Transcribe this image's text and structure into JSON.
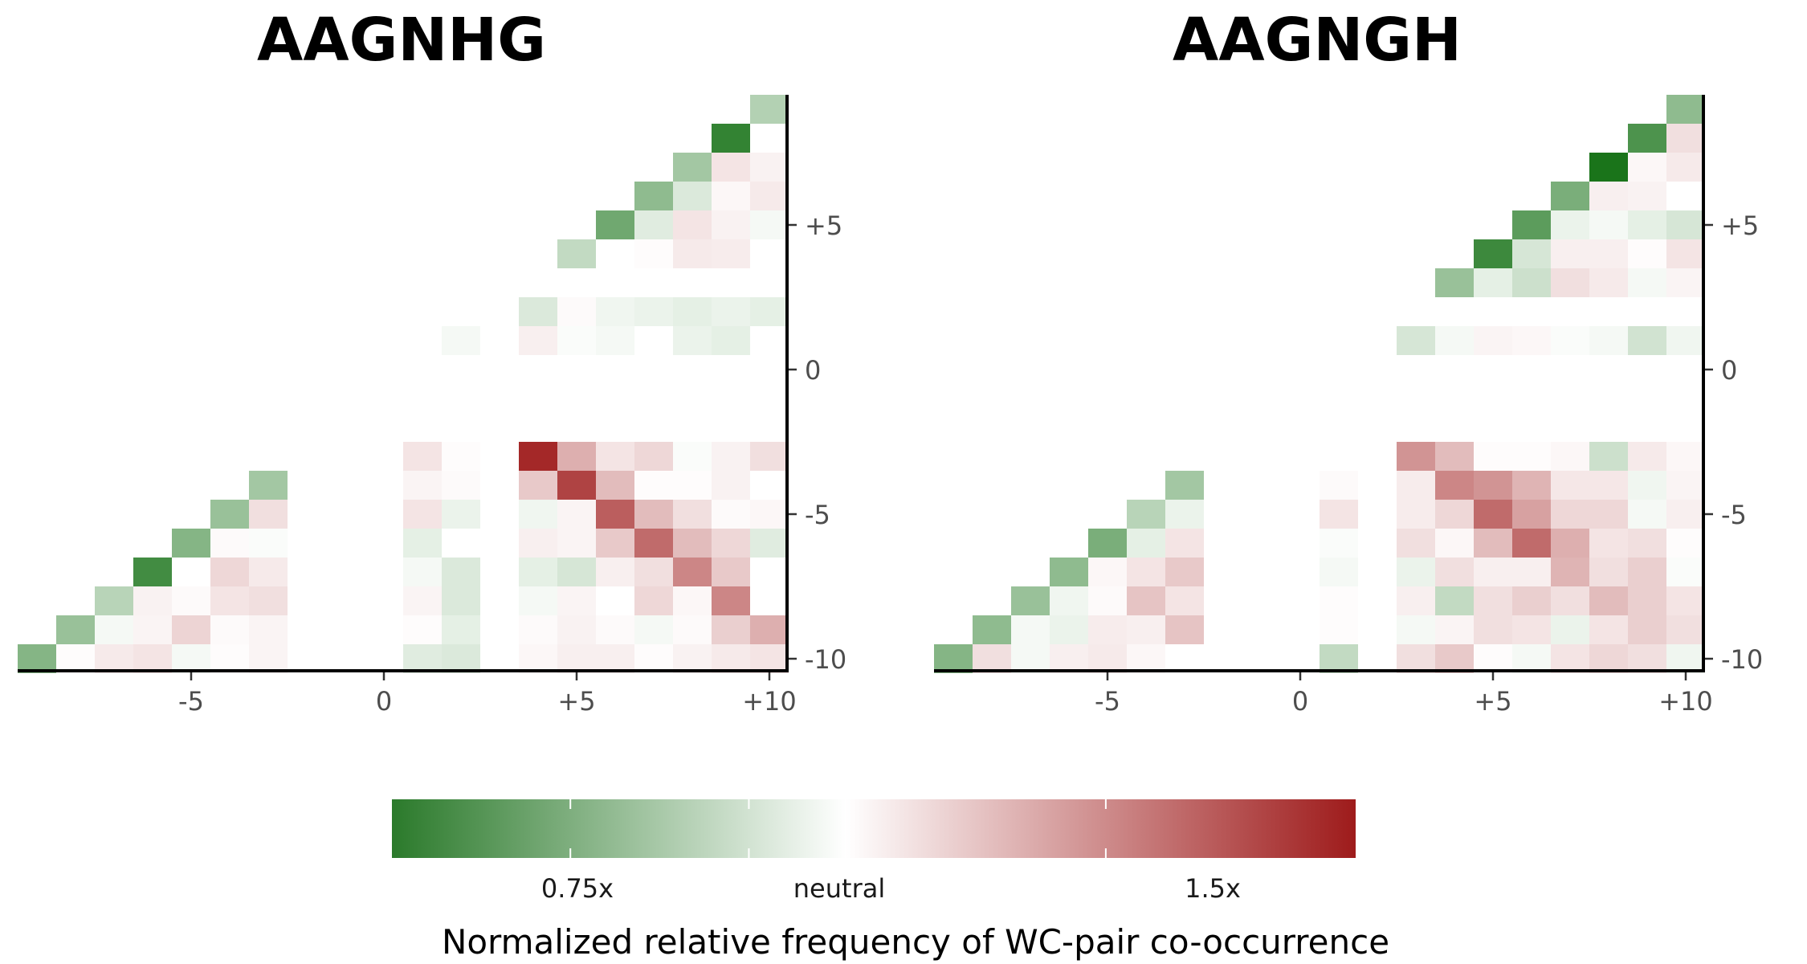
{
  "chart_data": [
    {
      "type": "heatmap",
      "title": "AAGNHG",
      "x_ticks": [
        "-5",
        "0",
        "+5",
        "+10"
      ],
      "y_ticks": [
        "+5",
        "0",
        "-5",
        "-10"
      ],
      "x_range": [
        -10,
        10
      ],
      "y_range": [
        -10,
        9
      ],
      "cells": [
        [
          10,
          9,
          0.85
        ],
        [
          9,
          8,
          0.6
        ],
        [
          10,
          8,
          1.0
        ],
        [
          8,
          7,
          0.82
        ],
        [
          9,
          7,
          1.1
        ],
        [
          10,
          7,
          1.05
        ],
        [
          7,
          6,
          0.78
        ],
        [
          8,
          6,
          0.93
        ],
        [
          9,
          6,
          1.03
        ],
        [
          10,
          6,
          1.08
        ],
        [
          6,
          5,
          0.72
        ],
        [
          7,
          5,
          0.94
        ],
        [
          8,
          5,
          1.1
        ],
        [
          9,
          5,
          1.05
        ],
        [
          10,
          5,
          0.98
        ],
        [
          5,
          4,
          0.88
        ],
        [
          6,
          4,
          1.0
        ],
        [
          7,
          4,
          1.01
        ],
        [
          8,
          4,
          1.08
        ],
        [
          9,
          4,
          1.07
        ],
        [
          4,
          2,
          0.93
        ],
        [
          5,
          2,
          1.02
        ],
        [
          6,
          2,
          0.97
        ],
        [
          7,
          2,
          0.96
        ],
        [
          8,
          2,
          0.95
        ],
        [
          9,
          2,
          0.96
        ],
        [
          10,
          2,
          0.95
        ],
        [
          2,
          1,
          0.98
        ],
        [
          4,
          1,
          1.06
        ],
        [
          5,
          1,
          0.99
        ],
        [
          6,
          1,
          0.98
        ],
        [
          7,
          1,
          1.0
        ],
        [
          8,
          1,
          0.96
        ],
        [
          9,
          1,
          0.95
        ],
        [
          1,
          -3,
          1.1
        ],
        [
          2,
          -3,
          1.01
        ],
        [
          4,
          -3,
          1.8
        ],
        [
          5,
          -3,
          1.3
        ],
        [
          6,
          -3,
          1.1
        ],
        [
          7,
          -3,
          1.15
        ],
        [
          8,
          -3,
          0.99
        ],
        [
          9,
          -3,
          1.05
        ],
        [
          10,
          -3,
          1.12
        ],
        [
          -3,
          -4,
          0.82
        ],
        [
          1,
          -4,
          1.04
        ],
        [
          2,
          -4,
          1.02
        ],
        [
          4,
          -4,
          1.2
        ],
        [
          5,
          -4,
          1.7
        ],
        [
          6,
          -4,
          1.25
        ],
        [
          7,
          -4,
          1.01
        ],
        [
          8,
          -4,
          1.01
        ],
        [
          9,
          -4,
          1.05
        ],
        [
          10,
          -4,
          1.0
        ],
        [
          -4,
          -5,
          0.8
        ],
        [
          -3,
          -5,
          1.12
        ],
        [
          1,
          -5,
          1.1
        ],
        [
          2,
          -5,
          0.96
        ],
        [
          4,
          -5,
          0.97
        ],
        [
          5,
          -5,
          1.04
        ],
        [
          6,
          -5,
          1.6
        ],
        [
          7,
          -5,
          1.25
        ],
        [
          8,
          -5,
          1.12
        ],
        [
          9,
          -5,
          1.02
        ],
        [
          10,
          -5,
          1.03
        ],
        [
          -5,
          -6,
          0.76
        ],
        [
          -4,
          -6,
          1.02
        ],
        [
          -3,
          -6,
          0.99
        ],
        [
          1,
          -6,
          0.95
        ],
        [
          2,
          -6,
          1.0
        ],
        [
          4,
          -6,
          1.06
        ],
        [
          5,
          -6,
          1.04
        ],
        [
          6,
          -6,
          1.2
        ],
        [
          7,
          -6,
          1.55
        ],
        [
          8,
          -6,
          1.25
        ],
        [
          9,
          -6,
          1.15
        ],
        [
          10,
          -6,
          0.94
        ],
        [
          -6,
          -7,
          0.63
        ],
        [
          -5,
          -7,
          1.0
        ],
        [
          -4,
          -7,
          1.15
        ],
        [
          -3,
          -7,
          1.08
        ],
        [
          1,
          -7,
          0.98
        ],
        [
          2,
          -7,
          0.93
        ],
        [
          4,
          -7,
          0.95
        ],
        [
          5,
          -7,
          0.92
        ],
        [
          6,
          -7,
          1.06
        ],
        [
          7,
          -7,
          1.12
        ],
        [
          8,
          -7,
          1.45
        ],
        [
          9,
          -7,
          1.2
        ],
        [
          10,
          -7,
          1.0
        ],
        [
          -7,
          -8,
          0.86
        ],
        [
          -6,
          -8,
          1.05
        ],
        [
          -5,
          -8,
          1.02
        ],
        [
          -4,
          -8,
          1.1
        ],
        [
          -3,
          -8,
          1.12
        ],
        [
          1,
          -8,
          1.04
        ],
        [
          2,
          -8,
          0.93
        ],
        [
          4,
          -8,
          0.98
        ],
        [
          5,
          -8,
          1.04
        ],
        [
          6,
          -8,
          1.0
        ],
        [
          7,
          -8,
          1.15
        ],
        [
          8,
          -8,
          1.03
        ],
        [
          9,
          -8,
          1.45
        ],
        [
          10,
          -8,
          1.0
        ],
        [
          -8,
          -9,
          0.8
        ],
        [
          -7,
          -9,
          0.98
        ],
        [
          -6,
          -9,
          1.04
        ],
        [
          -5,
          -9,
          1.16
        ],
        [
          -4,
          -9,
          1.02
        ],
        [
          -3,
          -9,
          1.04
        ],
        [
          1,
          -9,
          1.01
        ],
        [
          2,
          -9,
          0.95
        ],
        [
          4,
          -9,
          1.02
        ],
        [
          5,
          -9,
          1.05
        ],
        [
          6,
          -9,
          1.02
        ],
        [
          7,
          -9,
          0.98
        ],
        [
          8,
          -9,
          1.02
        ],
        [
          9,
          -9,
          1.18
        ],
        [
          10,
          -9,
          1.3
        ],
        [
          -9,
          -10,
          0.76
        ],
        [
          -8,
          -10,
          1.01
        ],
        [
          -7,
          -10,
          1.08
        ],
        [
          -6,
          -10,
          1.1
        ],
        [
          -5,
          -10,
          0.98
        ],
        [
          -4,
          -10,
          1.01
        ],
        [
          -3,
          -10,
          1.04
        ],
        [
          1,
          -10,
          0.94
        ],
        [
          2,
          -10,
          0.93
        ],
        [
          4,
          -10,
          1.03
        ],
        [
          5,
          -10,
          1.06
        ],
        [
          6,
          -10,
          1.06
        ],
        [
          7,
          -10,
          1.01
        ],
        [
          8,
          -10,
          1.05
        ],
        [
          9,
          -10,
          1.08
        ],
        [
          10,
          -10,
          1.1
        ]
      ]
    },
    {
      "type": "heatmap",
      "title": "AAGNGH",
      "x_ticks": [
        "-5",
        "0",
        "+5",
        "+10"
      ],
      "y_ticks": [
        "+5",
        "0",
        "-5",
        "-10"
      ],
      "x_range": [
        -10,
        10
      ],
      "y_range": [
        -10,
        9
      ],
      "cells": [
        [
          10,
          9,
          0.78
        ],
        [
          9,
          8,
          0.65
        ],
        [
          10,
          8,
          1.12
        ],
        [
          8,
          7,
          0.55
        ],
        [
          9,
          7,
          1.03
        ],
        [
          10,
          7,
          1.08
        ],
        [
          7,
          6,
          0.74
        ],
        [
          8,
          6,
          1.06
        ],
        [
          9,
          6,
          1.05
        ],
        [
          10,
          6,
          1.0
        ],
        [
          6,
          5,
          0.68
        ],
        [
          7,
          5,
          0.96
        ],
        [
          8,
          5,
          0.98
        ],
        [
          9,
          5,
          0.95
        ],
        [
          10,
          5,
          0.92
        ],
        [
          5,
          4,
          0.62
        ],
        [
          6,
          4,
          0.92
        ],
        [
          7,
          4,
          1.06
        ],
        [
          8,
          4,
          1.06
        ],
        [
          9,
          4,
          1.01
        ],
        [
          10,
          4,
          1.1
        ],
        [
          4,
          3,
          0.8
        ],
        [
          5,
          3,
          0.95
        ],
        [
          6,
          3,
          0.9
        ],
        [
          7,
          3,
          1.12
        ],
        [
          8,
          3,
          1.08
        ],
        [
          9,
          3,
          0.98
        ],
        [
          10,
          3,
          1.04
        ],
        [
          3,
          1,
          0.92
        ],
        [
          4,
          1,
          0.98
        ],
        [
          5,
          1,
          1.04
        ],
        [
          6,
          1,
          1.03
        ],
        [
          7,
          1,
          0.99
        ],
        [
          8,
          1,
          0.98
        ],
        [
          9,
          1,
          0.91
        ],
        [
          10,
          1,
          0.97
        ],
        [
          3,
          -3,
          1.4
        ],
        [
          4,
          -3,
          1.25
        ],
        [
          5,
          -3,
          1.01
        ],
        [
          6,
          -3,
          1.01
        ],
        [
          7,
          -3,
          1.03
        ],
        [
          8,
          -3,
          0.9
        ],
        [
          9,
          -3,
          1.08
        ],
        [
          10,
          -3,
          1.03
        ],
        [
          -3,
          -4,
          0.82
        ],
        [
          1,
          -4,
          1.02
        ],
        [
          3,
          -4,
          1.07
        ],
        [
          4,
          -4,
          1.45
        ],
        [
          5,
          -4,
          1.4
        ],
        [
          6,
          -4,
          1.28
        ],
        [
          7,
          -4,
          1.09
        ],
        [
          8,
          -4,
          1.09
        ],
        [
          9,
          -4,
          0.97
        ],
        [
          10,
          -4,
          1.04
        ],
        [
          -4,
          -5,
          0.86
        ],
        [
          -3,
          -5,
          0.96
        ],
        [
          1,
          -5,
          1.1
        ],
        [
          3,
          -5,
          1.07
        ],
        [
          4,
          -5,
          1.15
        ],
        [
          5,
          -5,
          1.55
        ],
        [
          6,
          -5,
          1.35
        ],
        [
          7,
          -5,
          1.15
        ],
        [
          8,
          -5,
          1.15
        ],
        [
          9,
          -5,
          0.98
        ],
        [
          10,
          -5,
          1.06
        ],
        [
          -5,
          -6,
          0.74
        ],
        [
          -4,
          -6,
          0.95
        ],
        [
          -3,
          -6,
          1.1
        ],
        [
          1,
          -6,
          0.99
        ],
        [
          3,
          -6,
          1.12
        ],
        [
          4,
          -6,
          1.03
        ],
        [
          5,
          -6,
          1.25
        ],
        [
          6,
          -6,
          1.55
        ],
        [
          7,
          -6,
          1.3
        ],
        [
          8,
          -6,
          1.1
        ],
        [
          9,
          -6,
          1.12
        ],
        [
          10,
          -6,
          1.01
        ],
        [
          -6,
          -7,
          0.78
        ],
        [
          -5,
          -7,
          1.03
        ],
        [
          -4,
          -7,
          1.1
        ],
        [
          -3,
          -7,
          1.2
        ],
        [
          1,
          -7,
          0.98
        ],
        [
          3,
          -7,
          0.96
        ],
        [
          4,
          -7,
          1.12
        ],
        [
          5,
          -7,
          1.06
        ],
        [
          6,
          -7,
          1.06
        ],
        [
          7,
          -7,
          1.28
        ],
        [
          8,
          -7,
          1.12
        ],
        [
          9,
          -7,
          1.18
        ],
        [
          10,
          -7,
          0.99
        ],
        [
          -7,
          -8,
          0.8
        ],
        [
          -6,
          -8,
          0.97
        ],
        [
          -5,
          -8,
          1.02
        ],
        [
          -4,
          -8,
          1.22
        ],
        [
          -3,
          -8,
          1.1
        ],
        [
          1,
          -8,
          1.01
        ],
        [
          3,
          -8,
          1.06
        ],
        [
          4,
          -8,
          0.88
        ],
        [
          5,
          -8,
          1.12
        ],
        [
          6,
          -8,
          1.18
        ],
        [
          7,
          -8,
          1.12
        ],
        [
          8,
          -8,
          1.25
        ],
        [
          9,
          -8,
          1.18
        ],
        [
          10,
          -8,
          1.1
        ],
        [
          -8,
          -9,
          0.78
        ],
        [
          -7,
          -9,
          0.98
        ],
        [
          -6,
          -9,
          0.96
        ],
        [
          -5,
          -9,
          1.07
        ],
        [
          -4,
          -9,
          1.06
        ],
        [
          -3,
          -9,
          1.22
        ],
        [
          1,
          -9,
          1.01
        ],
        [
          3,
          -9,
          0.98
        ],
        [
          4,
          -9,
          1.04
        ],
        [
          5,
          -9,
          1.12
        ],
        [
          6,
          -9,
          1.1
        ],
        [
          7,
          -9,
          0.96
        ],
        [
          8,
          -9,
          1.1
        ],
        [
          9,
          -9,
          1.18
        ],
        [
          10,
          -9,
          1.12
        ],
        [
          -9,
          -10,
          0.76
        ],
        [
          -8,
          -10,
          1.12
        ],
        [
          -7,
          -10,
          0.98
        ],
        [
          -6,
          -10,
          1.06
        ],
        [
          -5,
          -10,
          1.08
        ],
        [
          -4,
          -10,
          1.03
        ],
        [
          1,
          -10,
          0.88
        ],
        [
          3,
          -10,
          1.12
        ],
        [
          4,
          -10,
          1.2
        ],
        [
          5,
          -10,
          1.01
        ],
        [
          6,
          -10,
          0.98
        ],
        [
          7,
          -10,
          1.1
        ],
        [
          8,
          -10,
          1.15
        ],
        [
          9,
          -10,
          1.12
        ],
        [
          10,
          -10,
          0.97
        ]
      ]
    }
  ],
  "colorbar": {
    "title": "Normalized relative frequency of WC-pair co-occurrence",
    "labels": [
      {
        "text": "0.75x",
        "value": 0.75
      },
      {
        "text": "neutral",
        "value": 1.0
      },
      {
        "text": "1.5x",
        "value": 1.5
      }
    ],
    "range": [
      0.5,
      1.85
    ],
    "colors": {
      "low": "#006400",
      "mid": "#ffffff",
      "high": "#9e1b1b"
    }
  }
}
